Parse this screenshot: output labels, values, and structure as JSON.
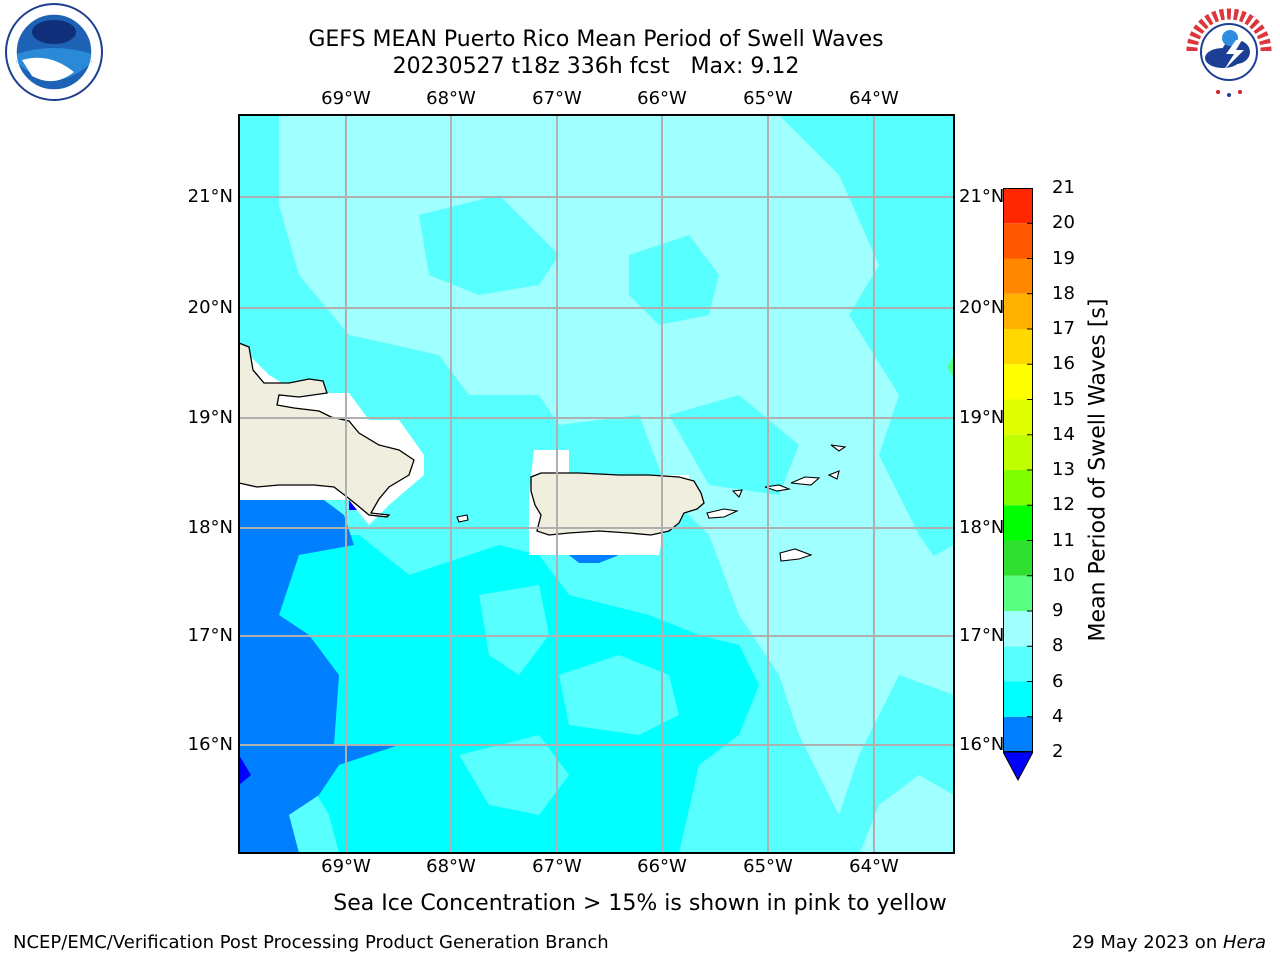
{
  "header": {
    "title_line1": "GEFS MEAN Puerto Rico Mean Period of Swell Waves",
    "title_line2": "20230527 t18z 336h fcst   Max: 9.12"
  },
  "logos": {
    "left": "noaa-logo",
    "right": "nws-logo"
  },
  "map": {
    "lon_labels": [
      "69°W",
      "68°W",
      "67°W",
      "66°W",
      "65°W",
      "64°W"
    ],
    "lat_labels": [
      "21°N",
      "20°N",
      "19°N",
      "18°N",
      "17°N",
      "16°N"
    ],
    "grid": true,
    "land_color": "#efeedf",
    "coast_color": "#000000"
  },
  "colorbar": {
    "title": "Mean Period of Swell Waves [s]",
    "ticks": [
      "2",
      "4",
      "6",
      "8",
      "9",
      "10",
      "11",
      "12",
      "13",
      "14",
      "15",
      "16",
      "17",
      "18",
      "19",
      "20",
      "21"
    ],
    "colors": [
      "#0080ff",
      "#00ffff",
      "#58ffff",
      "#a0ffff",
      "#58ff80",
      "#30e030",
      "#00ff00",
      "#80ff00",
      "#c0ff00",
      "#e0ff00",
      "#ffff00",
      "#ffd800",
      "#ffb000",
      "#ff8800",
      "#ff5800",
      "#ff2800",
      "#ff0000"
    ],
    "under_color": "#0000ff"
  },
  "subtitle": "Sea Ice Concentration > 15% is shown in pink to yellow",
  "footer": {
    "left": "NCEP/EMC/Verification Post Processing Product Generation Branch",
    "right_prefix": "29 May 2023 on ",
    "right_machine": "Hera"
  }
}
